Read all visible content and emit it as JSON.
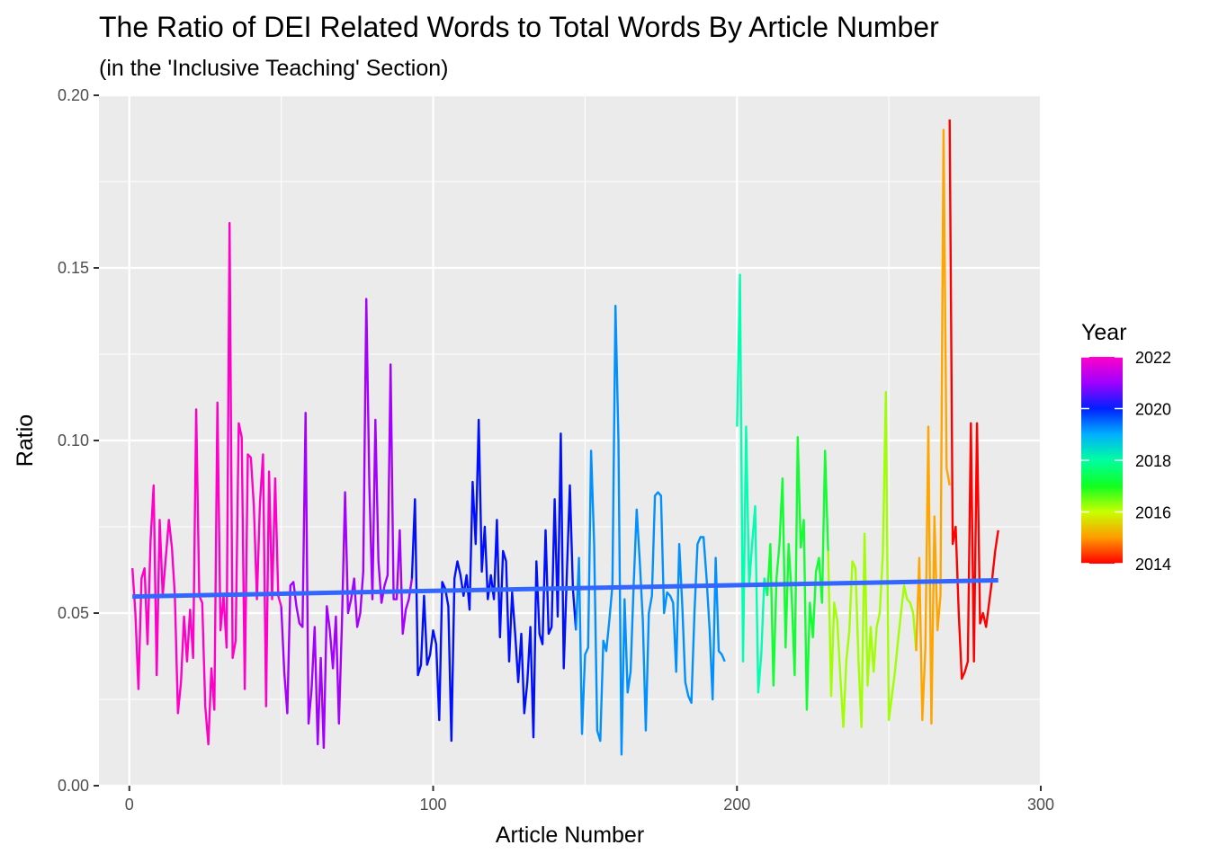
{
  "chart_data": {
    "type": "line",
    "title": "The Ratio of DEI Related Words to Total Words By Article Number",
    "subtitle": "(in the 'Inclusive Teaching' Section)",
    "xlabel": "Article Number",
    "ylabel": "Ratio",
    "xlim": [
      -10,
      300
    ],
    "ylim": [
      0,
      0.2
    ],
    "x_ticks": [
      0,
      100,
      200,
      300
    ],
    "x_tick_labels": [
      "0",
      "100",
      "200",
      "300"
    ],
    "y_ticks": [
      0,
      0.05,
      0.1,
      0.15,
      0.2
    ],
    "y_tick_labels": [
      "0.00",
      "0.05",
      "0.10",
      "0.15",
      "0.20"
    ],
    "grid": true,
    "color_scale": {
      "title": "Year",
      "placement": "right",
      "ticks": [
        2022,
        2020,
        2018,
        2016,
        2014
      ],
      "tick_labels": [
        "2022",
        "2020",
        "2018",
        "2016",
        "2014"
      ],
      "range": [
        2014,
        2022
      ],
      "low_color": "#ff0000",
      "high_color": "#ff00c8"
    },
    "series": [
      {
        "year": 2022,
        "color": "#ff00c8",
        "x": [
          1,
          2,
          3,
          4,
          5,
          6,
          7,
          8,
          9,
          10,
          11,
          12,
          13,
          14,
          15,
          16,
          17,
          18,
          19,
          20,
          21,
          22,
          23,
          24,
          25,
          26,
          27,
          28,
          29,
          30,
          31,
          32,
          33,
          34,
          35,
          36,
          37,
          38,
          39,
          40,
          41,
          42,
          43,
          44,
          45,
          46,
          47,
          48,
          49,
          50
        ],
        "y": [
          0.063,
          0.05,
          0.028,
          0.06,
          0.063,
          0.041,
          0.071,
          0.087,
          0.032,
          0.077,
          0.055,
          0.066,
          0.077,
          0.069,
          0.055,
          0.021,
          0.03,
          0.049,
          0.036,
          0.051,
          0.037,
          0.109,
          0.055,
          0.053,
          0.023,
          0.012,
          0.034,
          0.022,
          0.111,
          0.045,
          0.055,
          0.04,
          0.163,
          0.037,
          0.042,
          0.105,
          0.101,
          0.028,
          0.096,
          0.095,
          0.081,
          0.054,
          0.082,
          0.096,
          0.023,
          0.091,
          0.054,
          0.089,
          0.055,
          0.052
        ]
      },
      {
        "year": 2021,
        "color": "#a400ff",
        "x": [
          50,
          51,
          52,
          53,
          54,
          55,
          56,
          57,
          58,
          59,
          60,
          61,
          62,
          63,
          64,
          65,
          66,
          67,
          68,
          69,
          70,
          71,
          72,
          73,
          74,
          75,
          76,
          77,
          78,
          79,
          80,
          81,
          82,
          83,
          84,
          85,
          86,
          87,
          88,
          89,
          90,
          91,
          92,
          93
        ],
        "y": [
          0.052,
          0.033,
          0.021,
          0.058,
          0.059,
          0.052,
          0.047,
          0.046,
          0.108,
          0.018,
          0.028,
          0.046,
          0.012,
          0.037,
          0.011,
          0.052,
          0.045,
          0.034,
          0.049,
          0.018,
          0.048,
          0.085,
          0.05,
          0.054,
          0.06,
          0.046,
          0.05,
          0.062,
          0.141,
          0.087,
          0.054,
          0.106,
          0.065,
          0.053,
          0.058,
          0.061,
          0.122,
          0.054,
          0.054,
          0.074,
          0.044,
          0.051,
          0.054,
          0.06
        ]
      },
      {
        "year": 2020,
        "color": "#0010ff",
        "x": [
          93,
          94,
          95,
          96,
          97,
          98,
          99,
          100,
          101,
          102,
          103,
          104,
          105,
          106,
          107,
          108,
          109,
          110,
          111,
          112,
          113,
          114,
          115,
          116,
          117,
          118,
          119,
          120,
          121,
          122,
          123,
          124,
          125,
          126,
          127,
          128,
          129,
          130,
          131,
          132,
          133,
          134,
          135,
          136,
          137,
          138,
          139,
          140,
          141,
          142,
          143,
          144,
          145,
          146,
          147
        ],
        "y": [
          0.06,
          0.083,
          0.032,
          0.035,
          0.055,
          0.035,
          0.038,
          0.045,
          0.041,
          0.019,
          0.059,
          0.057,
          0.052,
          0.013,
          0.06,
          0.065,
          0.061,
          0.055,
          0.061,
          0.051,
          0.088,
          0.07,
          0.106,
          0.062,
          0.075,
          0.054,
          0.061,
          0.054,
          0.077,
          0.043,
          0.068,
          0.065,
          0.036,
          0.056,
          0.044,
          0.03,
          0.044,
          0.021,
          0.03,
          0.046,
          0.014,
          0.065,
          0.044,
          0.041,
          0.074,
          0.044,
          0.046,
          0.083,
          0.049,
          0.102,
          0.034,
          0.061,
          0.087,
          0.057,
          0.045
        ]
      },
      {
        "year": 2019,
        "color": "#0090ff",
        "x": [
          147,
          148,
          149,
          150,
          151,
          152,
          153,
          154,
          155,
          156,
          157,
          158,
          159,
          160,
          161,
          162,
          163,
          164,
          165,
          166,
          167,
          168,
          169,
          170,
          171,
          172,
          173,
          174,
          175,
          176,
          177,
          178,
          179,
          180,
          181,
          182,
          183,
          184,
          185,
          186,
          187,
          188,
          189,
          190,
          191,
          192,
          193,
          194,
          195,
          196
        ],
        "y": [
          0.045,
          0.066,
          0.015,
          0.038,
          0.04,
          0.097,
          0.07,
          0.016,
          0.013,
          0.042,
          0.039,
          0.048,
          0.058,
          0.139,
          0.1,
          0.009,
          0.054,
          0.027,
          0.033,
          0.058,
          0.08,
          0.065,
          0.048,
          0.016,
          0.05,
          0.055,
          0.084,
          0.085,
          0.084,
          0.05,
          0.056,
          0.055,
          0.053,
          0.033,
          0.07,
          0.052,
          0.03,
          0.026,
          0.024,
          0.05,
          0.07,
          0.072,
          0.072,
          0.06,
          0.045,
          0.025,
          0.066,
          0.039,
          0.038,
          0.036
        ]
      },
      {
        "year": 2018,
        "color": "#00ffb0",
        "x": [
          200,
          201,
          202,
          203,
          204,
          205,
          206,
          207,
          208,
          209,
          210
        ],
        "y": [
          0.104,
          0.148,
          0.036,
          0.104,
          0.058,
          0.07,
          0.081,
          0.027,
          0.038,
          0.06,
          0.055
        ]
      },
      {
        "year": 2017,
        "color": "#10ff30",
        "x": [
          210,
          211,
          212,
          213,
          214,
          215,
          216,
          217,
          218,
          219,
          220,
          221,
          222,
          223,
          224,
          225,
          226,
          227,
          228,
          229,
          230
        ],
        "y": [
          0.055,
          0.07,
          0.029,
          0.06,
          0.07,
          0.089,
          0.04,
          0.07,
          0.055,
          0.032,
          0.101,
          0.069,
          0.077,
          0.022,
          0.053,
          0.043,
          0.062,
          0.066,
          0.053,
          0.097,
          0.068
        ]
      },
      {
        "year": 2016,
        "color": "#a0ff00",
        "x": [
          230,
          231,
          232,
          233,
          234,
          235,
          236,
          237,
          238,
          239,
          240,
          241,
          242,
          243,
          244,
          245,
          246,
          247,
          248,
          249,
          250,
          251,
          252,
          253,
          254,
          255,
          256,
          257,
          258,
          259
        ],
        "y": [
          0.068,
          0.026,
          0.053,
          0.048,
          0.032,
          0.017,
          0.036,
          0.045,
          0.065,
          0.063,
          0.036,
          0.017,
          0.073,
          0.029,
          0.046,
          0.033,
          0.046,
          0.05,
          0.067,
          0.114,
          0.019,
          0.026,
          0.033,
          0.042,
          0.05,
          0.058,
          0.054,
          0.053,
          0.05,
          0.039
        ]
      },
      {
        "year": 2015,
        "color": "#ffa500",
        "x": [
          259,
          260,
          261,
          262,
          263,
          264,
          265,
          266,
          267,
          268,
          269,
          270
        ],
        "y": [
          0.039,
          0.066,
          0.019,
          0.04,
          0.104,
          0.018,
          0.078,
          0.045,
          0.055,
          0.19,
          0.092,
          0.087
        ]
      },
      {
        "year": 2014,
        "color": "#ff0000",
        "x": [
          270,
          271,
          272,
          273,
          274,
          275,
          276,
          277,
          278,
          279,
          280,
          281,
          282,
          283,
          284,
          285,
          286
        ],
        "y": [
          0.193,
          0.07,
          0.075,
          0.05,
          0.031,
          0.033,
          0.036,
          0.105,
          0.036,
          0.105,
          0.047,
          0.05,
          0.046,
          0.053,
          0.06,
          0.068,
          0.074
        ]
      }
    ],
    "trend_line": {
      "color": "#3366ff",
      "x": [
        1,
        286
      ],
      "y": [
        0.0548,
        0.0595
      ]
    }
  }
}
